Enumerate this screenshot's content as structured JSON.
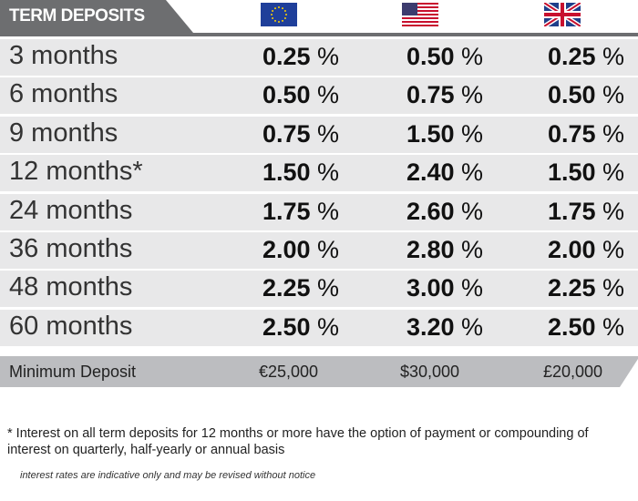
{
  "header": {
    "title": "TERM DEPOSITS"
  },
  "currencies": [
    {
      "flag": "eu-flag-icon"
    },
    {
      "flag": "us-flag-icon"
    },
    {
      "flag": "uk-flag-icon"
    }
  ],
  "rows": [
    {
      "term": "3 months",
      "rates": [
        "0.25",
        "0.50",
        "0.25"
      ]
    },
    {
      "term": "6 months",
      "rates": [
        "0.50",
        "0.75",
        "0.50"
      ]
    },
    {
      "term": "9 months",
      "rates": [
        "0.75",
        "1.50",
        "0.75"
      ]
    },
    {
      "term": "12 months*",
      "rates": [
        "1.50",
        "2.40",
        "1.50"
      ]
    },
    {
      "term": "24 months",
      "rates": [
        "1.75",
        "2.60",
        "1.75"
      ]
    },
    {
      "term": "36 months",
      "rates": [
        "2.00",
        "2.80",
        "2.00"
      ]
    },
    {
      "term": "48  months",
      "rates": [
        "2.25",
        "3.00",
        "2.25"
      ]
    },
    {
      "term": "60 months",
      "rates": [
        "2.50",
        "3.20",
        "2.50"
      ]
    }
  ],
  "percent_sign": "%",
  "minimum_deposit": {
    "label": "Minimum Deposit",
    "values": [
      "€25,000",
      "$30,000",
      "£20,000"
    ]
  },
  "footnote": "* Interest on all term deposits for 12 months or more have the option of payment or compounding of interest on quarterly, half-yearly or annual basis",
  "disclaimer": "interest rates are indicative only and may be revised without notice"
}
